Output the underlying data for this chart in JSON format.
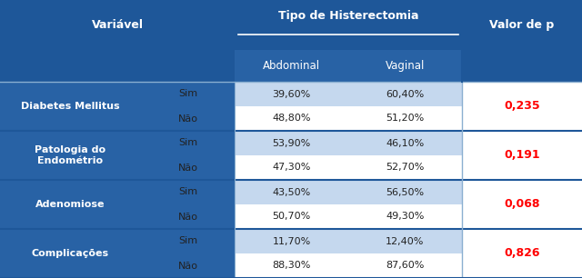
{
  "title_header": "Tipo de Histerectomia",
  "valor_header": "Valor de  p",
  "variavel_header": "Variável",
  "col_abdominal": "Abdominal",
  "col_vaginal": "Vaginal",
  "groups": [
    {
      "name": "Diabetes Mellitus",
      "rows": [
        0,
        1
      ]
    },
    {
      "name": "Patologia do\nEndométrio",
      "rows": [
        2,
        3
      ]
    },
    {
      "name": "Adenomiose",
      "rows": [
        4,
        5
      ]
    },
    {
      "name": "Complicações",
      "rows": [
        6,
        7
      ]
    }
  ],
  "rows": [
    {
      "sub": "Sim",
      "abdominal": "39,60%",
      "vaginal": "60,40%"
    },
    {
      "sub": "Não",
      "abdominal": "48,80%",
      "vaginal": "51,20%"
    },
    {
      "sub": "Sim",
      "abdominal": "53,90%",
      "vaginal": "46,10%"
    },
    {
      "sub": "Não",
      "abdominal": "47,30%",
      "vaginal": "52,70%"
    },
    {
      "sub": "Sim",
      "abdominal": "43,50%",
      "vaginal": "56,50%"
    },
    {
      "sub": "Não",
      "abdominal": "50,70%",
      "vaginal": "49,30%"
    },
    {
      "sub": "Sim",
      "abdominal": "11,70%",
      "vaginal": "12,40%"
    },
    {
      "sub": "Não",
      "abdominal": "88,30%",
      "vaginal": "87,60%"
    }
  ],
  "p_values": [
    "0,235",
    "0,191",
    "0,068",
    "0,826"
  ],
  "dark_blue": "#1E5799",
  "mid_blue": "#2862A5",
  "light_blue": "#C5D8EE",
  "white": "#FFFFFF",
  "p_color": "#FF0000",
  "text_dark": "#222222",
  "text_white": "#FFFFFF",
  "figsize": [
    6.4,
    3.06
  ],
  "dpi": 100
}
